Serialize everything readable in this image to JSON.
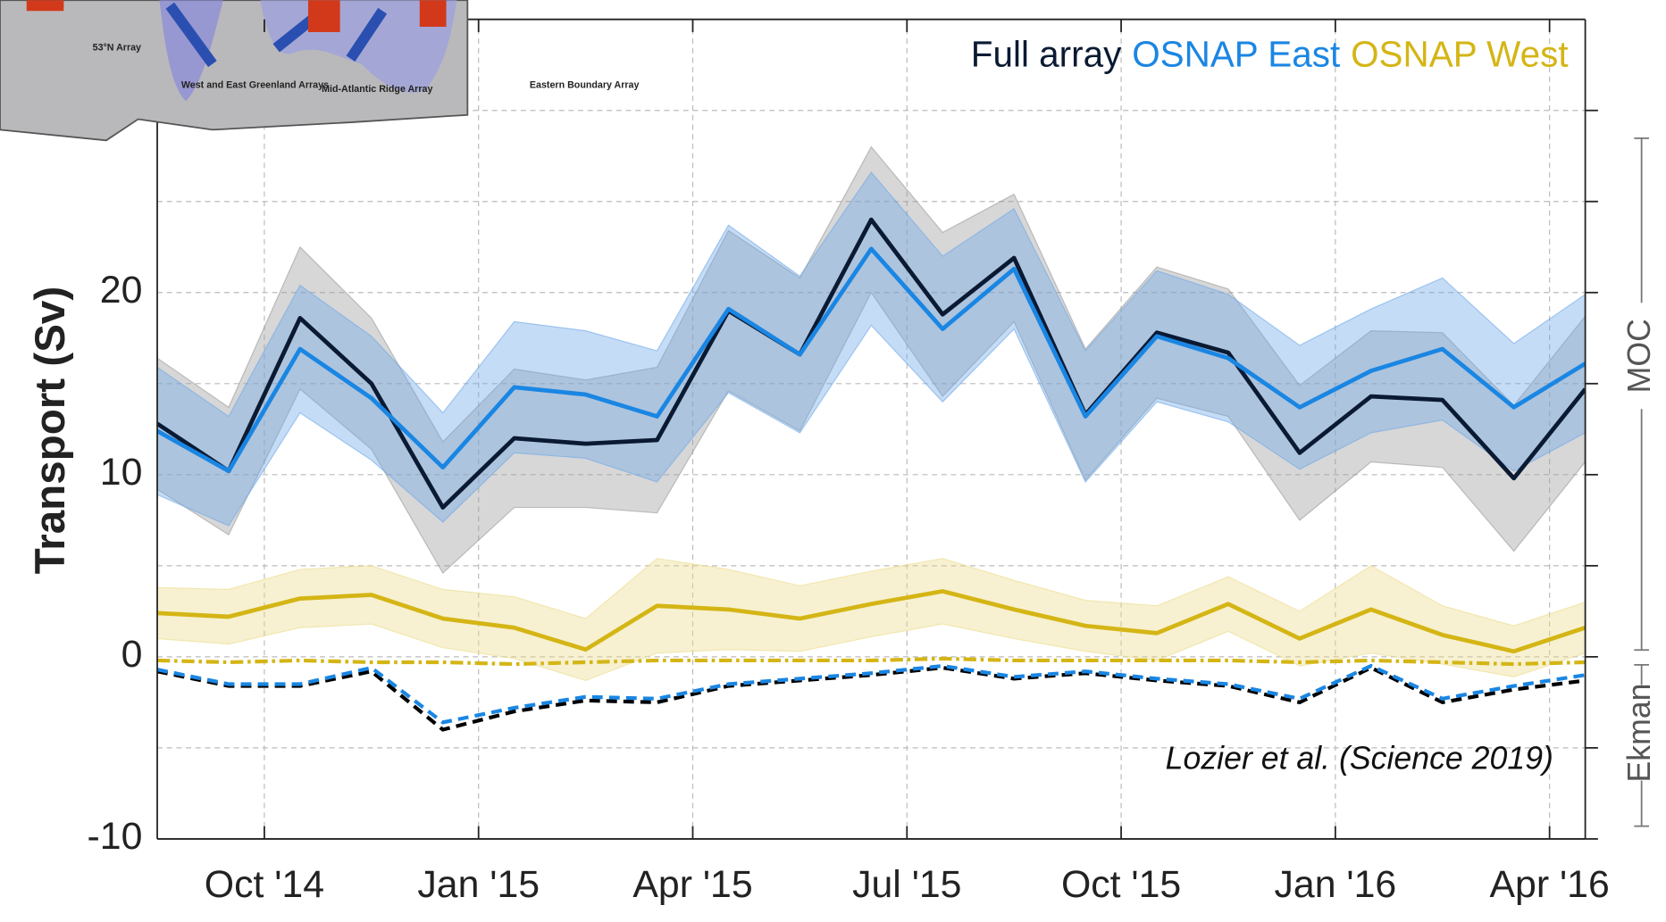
{
  "chart_data": {
    "type": "line",
    "y_label": "Transport (Sv)",
    "annotation": "Lozier et al. (Science 2019)",
    "side_labels": [
      "MOC",
      "Ekman"
    ],
    "x": [
      "2014-08",
      "2014-09",
      "2014-10",
      "2014-11",
      "2014-12",
      "2015-01",
      "2015-02",
      "2015-03",
      "2015-04",
      "2015-05",
      "2015-06",
      "2015-07",
      "2015-08",
      "2015-09",
      "2015-10",
      "2015-11",
      "2015-12",
      "2016-01",
      "2016-02",
      "2016-03",
      "2016-04"
    ],
    "xlim": [
      "2014-08",
      "2016-04"
    ],
    "xticks": [
      {
        "value": "2014-10",
        "label": "Oct '14"
      },
      {
        "value": "2015-01",
        "label": "Jan '15"
      },
      {
        "value": "2015-04",
        "label": "Apr '15"
      },
      {
        "value": "2015-07",
        "label": "Jul '15"
      },
      {
        "value": "2015-10",
        "label": "Oct '15"
      },
      {
        "value": "2016-01",
        "label": "Jan '16"
      },
      {
        "value": "2016-04",
        "label": "Apr '16"
      }
    ],
    "ylim": [
      -10,
      35
    ],
    "yticks": [
      -10,
      0,
      10,
      20
    ],
    "ygrid": [
      -5,
      5,
      15,
      25,
      30
    ],
    "grid": true,
    "series": [
      {
        "name": "Full array",
        "color": "#0b1a33",
        "band_color": "#9a9a9a",
        "values": [
          12.8,
          10.2,
          18.6,
          15.0,
          8.2,
          12.0,
          11.7,
          11.9,
          19.0,
          16.6,
          24.0,
          18.8,
          21.9,
          13.3,
          17.8,
          16.7,
          11.2,
          14.3,
          14.1,
          9.8,
          14.7
        ],
        "errors": [
          3.6,
          3.5,
          3.9,
          3.6,
          3.6,
          3.8,
          3.5,
          4.0,
          4.4,
          4.2,
          4.0,
          4.5,
          3.5,
          3.6,
          3.6,
          3.5,
          3.7,
          3.6,
          3.7,
          4.0,
          4.0
        ]
      },
      {
        "name": "OSNAP East",
        "color": "#1a86e3",
        "band_color": "#6fa8e8",
        "values": [
          12.4,
          10.2,
          16.9,
          14.2,
          10.4,
          14.8,
          14.4,
          13.2,
          19.1,
          16.6,
          22.4,
          18.0,
          21.3,
          13.2,
          17.6,
          16.4,
          13.7,
          15.7,
          16.9,
          13.7,
          16.1
        ],
        "errors": [
          3.5,
          3.0,
          3.5,
          3.4,
          3.0,
          3.6,
          3.5,
          3.6,
          4.6,
          4.3,
          4.2,
          4.0,
          3.3,
          3.6,
          3.6,
          3.5,
          3.4,
          3.4,
          3.9,
          3.5,
          3.8
        ]
      },
      {
        "name": "OSNAP West",
        "color": "#d4b515",
        "band_color": "#ecdc8c",
        "values": [
          2.4,
          2.2,
          3.2,
          3.4,
          2.1,
          1.6,
          0.4,
          2.8,
          2.6,
          2.1,
          2.9,
          3.6,
          2.6,
          1.7,
          1.3,
          2.9,
          1.0,
          2.6,
          1.2,
          0.3,
          1.6
        ],
        "errors": [
          1.4,
          1.5,
          1.6,
          1.6,
          1.6,
          1.7,
          1.7,
          2.6,
          2.2,
          1.8,
          1.8,
          1.8,
          1.6,
          1.4,
          1.5,
          1.5,
          1.5,
          2.4,
          1.6,
          1.4,
          1.4
        ]
      }
    ],
    "ekman": [
      {
        "color": "#000000",
        "dash": "10,6",
        "values": [
          -0.8,
          -1.6,
          -1.6,
          -0.8,
          -4.0,
          -3.0,
          -2.4,
          -2.5,
          -1.6,
          -1.3,
          -1.0,
          -0.6,
          -1.2,
          -0.9,
          -1.3,
          -1.6,
          -2.5,
          -0.6,
          -2.5,
          -1.8,
          -1.3
        ]
      },
      {
        "color": "#1a86e3",
        "dash": "10,6",
        "values": [
          -0.7,
          -1.5,
          -1.5,
          -0.6,
          -3.6,
          -2.8,
          -2.2,
          -2.3,
          -1.5,
          -1.2,
          -0.9,
          -0.5,
          -1.1,
          -0.8,
          -1.2,
          -1.5,
          -2.3,
          -0.5,
          -2.3,
          -1.6,
          -1.0
        ]
      },
      {
        "color": "#d4b515",
        "dash": "12,4,3,4",
        "values": [
          -0.2,
          -0.3,
          -0.2,
          -0.3,
          -0.3,
          -0.4,
          -0.3,
          -0.2,
          -0.2,
          -0.2,
          -0.2,
          -0.1,
          -0.2,
          -0.2,
          -0.2,
          -0.2,
          -0.3,
          -0.2,
          -0.3,
          -0.4,
          -0.3
        ]
      }
    ]
  },
  "inset": {
    "labels": [
      "53°N Array",
      "West and East Greenland Arrays",
      "Mid-Atlantic Ridge Array",
      "Eastern Boundary Array"
    ]
  }
}
